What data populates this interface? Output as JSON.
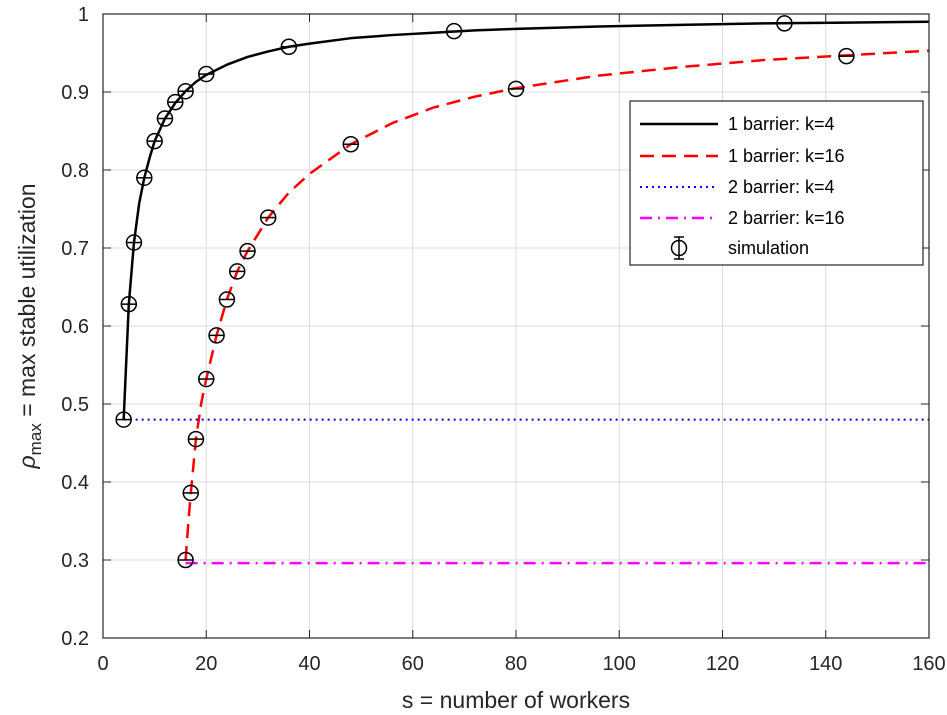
{
  "chart_data": {
    "type": "line",
    "title": "",
    "xlabel": "s = number of workers",
    "ylabel_main": "ρ",
    "ylabel_sub": "max",
    "ylabel_rest": " = max stable utilization",
    "xlim": [
      0,
      160
    ],
    "ylim": [
      0.2,
      1
    ],
    "xticks": [
      0,
      20,
      40,
      60,
      80,
      100,
      120,
      140,
      160
    ],
    "yticks": [
      0.2,
      0.3,
      0.4,
      0.5,
      0.6,
      0.7,
      0.8,
      0.9,
      1
    ],
    "ytick_labels": [
      "0.2",
      "0.3",
      "0.4",
      "0.5",
      "0.6",
      "0.7",
      "0.8",
      "0.9",
      "1"
    ],
    "grid": true,
    "legend_position": "top-right",
    "series": [
      {
        "name": "1 barrier: k=4",
        "style": "solid",
        "color": "#000000",
        "x": [
          4,
          5,
          6,
          7,
          8,
          9,
          10,
          12,
          14,
          16,
          18,
          20,
          24,
          28,
          32,
          36,
          40,
          48,
          56,
          64,
          72,
          80,
          96,
          112,
          128,
          144,
          160
        ],
        "y": [
          0.48,
          0.628,
          0.707,
          0.757,
          0.79,
          0.815,
          0.837,
          0.866,
          0.886,
          0.901,
          0.913,
          0.922,
          0.935,
          0.945,
          0.952,
          0.958,
          0.962,
          0.969,
          0.973,
          0.976,
          0.979,
          0.981,
          0.984,
          0.986,
          0.988,
          0.989,
          0.99
        ]
      },
      {
        "name": "1 barrier: k=16",
        "style": "dashed",
        "color": "#ff0000",
        "x": [
          16,
          16.5,
          17,
          18,
          19,
          20,
          22,
          24,
          26,
          28,
          32,
          36,
          40,
          48,
          56,
          64,
          72,
          80,
          96,
          112,
          128,
          144,
          160
        ],
        "y": [
          0.3,
          0.345,
          0.385,
          0.455,
          0.5,
          0.532,
          0.588,
          0.634,
          0.67,
          0.696,
          0.739,
          0.771,
          0.795,
          0.833,
          0.86,
          0.88,
          0.894,
          0.905,
          0.921,
          0.932,
          0.941,
          0.947,
          0.953
        ]
      },
      {
        "name": "2 barrier: k=4",
        "style": "dotted",
        "color": "#0000ff",
        "x": [
          4,
          160
        ],
        "y": [
          0.48,
          0.48
        ]
      },
      {
        "name": "2 barrier: k=16",
        "style": "dashdot",
        "color": "#ff00ff",
        "x": [
          16,
          160
        ],
        "y": [
          0.296,
          0.296
        ]
      }
    ],
    "simulation": {
      "name": "simulation",
      "marker": "circle",
      "color": "#000000",
      "x": [
        4,
        5,
        6,
        8,
        10,
        12,
        14,
        16,
        20,
        36,
        68,
        132,
        16,
        17,
        18,
        20,
        22,
        24,
        26,
        28,
        32,
        48,
        80,
        144
      ],
      "y": [
        0.48,
        0.628,
        0.707,
        0.79,
        0.837,
        0.866,
        0.887,
        0.901,
        0.923,
        0.958,
        0.978,
        0.988,
        0.3,
        0.386,
        0.455,
        0.532,
        0.588,
        0.634,
        0.67,
        0.696,
        0.739,
        0.833,
        0.904,
        0.946
      ]
    }
  }
}
